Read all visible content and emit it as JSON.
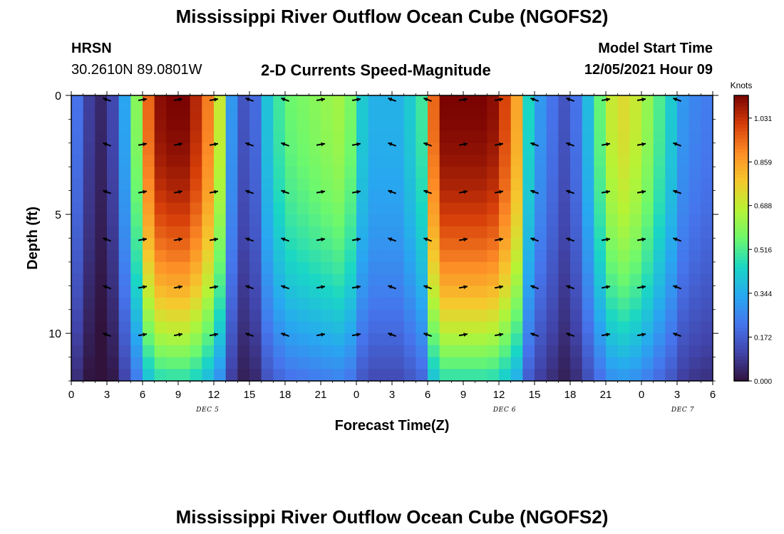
{
  "header": {
    "title": "Mississippi River Outflow Ocean Cube (NGOFS2)",
    "station": "HRSN",
    "coords": "30.2610N  89.0801W",
    "subtitle": "2-D Currents Speed-Magnitude",
    "model_start_label": "Model Start Time",
    "model_start_value": "12/05/2021 Hour 09"
  },
  "footer": {
    "title": "Mississippi River Outflow Ocean Cube (NGOFS2)"
  },
  "colors": {
    "low": "#2a1a5e",
    "mid": "#8fd23c",
    "high": "#7a0403"
  },
  "chart_data": {
    "type": "heatmap",
    "title": "2-D Currents Speed-Magnitude",
    "xlabel": "Forecast Time(Z)",
    "ylabel": "Depth (ft)",
    "x_range_hours": [
      0,
      54
    ],
    "y_range_ft": [
      0,
      12
    ],
    "x_ticks": [
      "0",
      "3",
      "6",
      "9",
      "12",
      "15",
      "18",
      "21",
      "0",
      "3",
      "6",
      "9",
      "12",
      "15",
      "18",
      "21",
      "0",
      "3",
      "6"
    ],
    "y_ticks": [
      "0",
      "5",
      "10"
    ],
    "date_labels": [
      {
        "hour": 11,
        "text": "DEC 5"
      },
      {
        "hour": 36,
        "text": "DEC 6"
      },
      {
        "hour": 51,
        "text": "DEC 7"
      }
    ],
    "colorbar": {
      "label": "Knots",
      "range": [
        0.0,
        1.12
      ],
      "ticks": [
        "0.000",
        "0.172",
        "0.344",
        "0.516",
        "0.688",
        "0.859",
        "1.031"
      ]
    },
    "surface_speed_knots_by_hour": [
      0.28,
      0.22,
      0.1,
      0.05,
      0.12,
      0.33,
      0.6,
      0.95,
      1.1,
      1.12,
      1.12,
      1.05,
      0.92,
      0.7,
      0.3,
      0.15,
      0.2,
      0.4,
      0.5,
      0.56,
      0.58,
      0.6,
      0.62,
      0.64,
      0.58,
      0.42,
      0.36,
      0.36,
      0.36,
      0.42,
      0.5,
      0.95,
      1.12,
      1.12,
      1.12,
      1.12,
      1.1,
      1.0,
      0.85,
      0.45,
      0.3,
      0.22,
      0.15,
      0.22,
      0.38,
      0.55,
      0.7,
      0.74,
      0.7,
      0.62,
      0.52,
      0.42,
      0.3,
      0.26,
      0.24
    ],
    "depth_samples_ft": [
      0,
      2,
      4,
      6,
      8,
      10,
      12
    ]
  }
}
